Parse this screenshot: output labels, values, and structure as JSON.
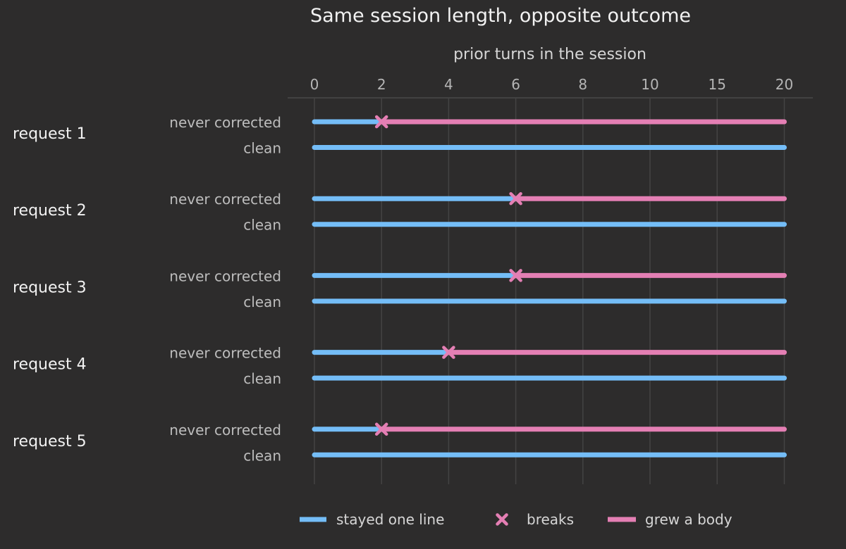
{
  "chart_data": {
    "type": "timeline",
    "title": "Same session length, opposite outcome",
    "xlabel": "prior turns in the session",
    "xlim": [
      0,
      20
    ],
    "x_ticks": [
      0,
      2,
      4,
      6,
      8,
      10,
      15,
      20
    ],
    "x_axis_scale": "piecewise: 0-10 wider per unit, 10-20 narrower per unit",
    "x_axis_position": "top",
    "grid": "vertical",
    "colors": {
      "background": "#2d2c2c",
      "stayed": "#74bdf7",
      "grew": "#e47fb4",
      "grid": "#444343"
    },
    "rows": [
      {
        "name": "request 1",
        "series": [
          {
            "label": "never corrected",
            "start": 0,
            "end": 20,
            "breaks_at": 2
          },
          {
            "label": "clean",
            "start": 0,
            "end": 20,
            "breaks_at": null
          }
        ]
      },
      {
        "name": "request 2",
        "series": [
          {
            "label": "never corrected",
            "start": 0,
            "end": 20,
            "breaks_at": 6
          },
          {
            "label": "clean",
            "start": 0,
            "end": 20,
            "breaks_at": null
          }
        ]
      },
      {
        "name": "request 3",
        "series": [
          {
            "label": "never corrected",
            "start": 0,
            "end": 20,
            "breaks_at": 6
          },
          {
            "label": "clean",
            "start": 0,
            "end": 20,
            "breaks_at": null
          }
        ]
      },
      {
        "name": "request 4",
        "series": [
          {
            "label": "never corrected",
            "start": 0,
            "end": 20,
            "breaks_at": 4
          },
          {
            "label": "clean",
            "start": 0,
            "end": 20,
            "breaks_at": null
          }
        ]
      },
      {
        "name": "request 5",
        "series": [
          {
            "label": "never corrected",
            "start": 0,
            "end": 20,
            "breaks_at": 2
          },
          {
            "label": "clean",
            "start": 0,
            "end": 20,
            "breaks_at": null
          }
        ]
      }
    ],
    "legend": {
      "position": "bottom",
      "items": [
        {
          "label": "stayed one line",
          "marker": "line",
          "color": "#74bdf7"
        },
        {
          "label": "breaks",
          "marker": "x",
          "color": "#e47fb4"
        },
        {
          "label": "grew a body",
          "marker": "line",
          "color": "#e47fb4"
        }
      ]
    }
  }
}
